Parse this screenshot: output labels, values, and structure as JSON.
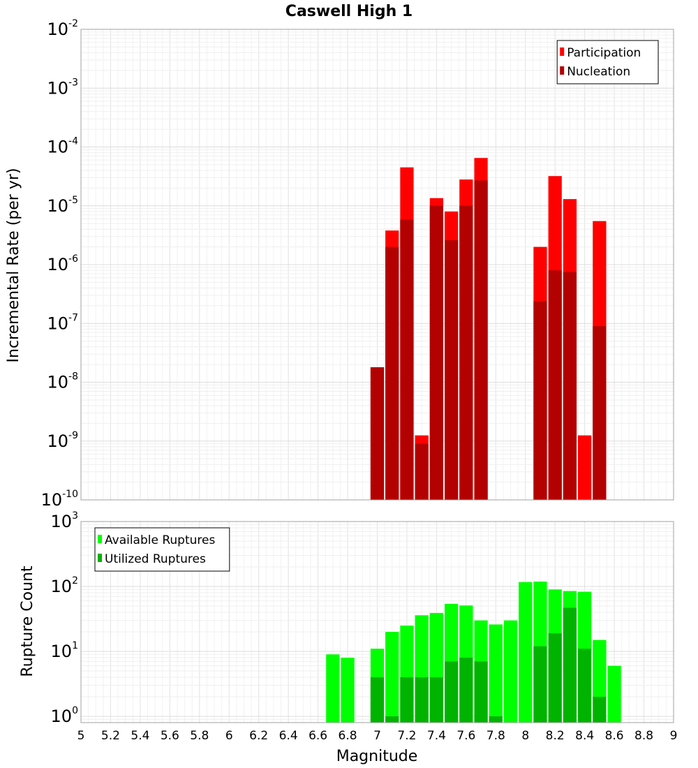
{
  "chart_data": [
    {
      "type": "bar",
      "title": "Caswell High 1",
      "xlabel": "",
      "ylabel": "Incremental Rate (per yr)",
      "yscale": "log",
      "ylim": [
        1e-10,
        0.01
      ],
      "xlim": [
        5,
        9
      ],
      "legend_position": "top-right",
      "x": [
        7.0,
        7.1,
        7.2,
        7.3,
        7.4,
        7.5,
        7.6,
        7.7,
        8.1,
        8.2,
        8.3,
        8.4,
        8.5
      ],
      "series": [
        {
          "name": "Participation",
          "color": "#ff0000",
          "values": [
            1.8e-08,
            3.8e-06,
            4.5e-05,
            1.25e-09,
            1.35e-05,
            8e-06,
            2.8e-05,
            6.5e-05,
            2e-06,
            3.2e-05,
            1.3e-05,
            1.25e-09,
            5.5e-06
          ]
        },
        {
          "name": "Nucleation",
          "color": "#b30000",
          "values": [
            1.8e-08,
            2e-06,
            5.8e-06,
            9e-10,
            1e-05,
            2.6e-06,
            1e-05,
            2.7e-05,
            2.4e-07,
            8e-07,
            7.5e-07,
            null,
            9e-08
          ]
        }
      ]
    },
    {
      "type": "bar",
      "title": "",
      "xlabel": "Magnitude",
      "ylabel": "Rupture Count",
      "yscale": "log",
      "ylim": [
        0.8,
        1000
      ],
      "xlim": [
        5,
        9
      ],
      "x_ticks": [
        "5",
        "5.2",
        "5.4",
        "5.6",
        "5.8",
        "6",
        "6.2",
        "6.4",
        "6.6",
        "6.8",
        "7",
        "7.2",
        "7.4",
        "7.6",
        "7.8",
        "8",
        "8.2",
        "8.4",
        "8.6",
        "8.8",
        "9"
      ],
      "legend_position": "top-left",
      "x": [
        6.7,
        6.8,
        7.0,
        7.1,
        7.2,
        7.3,
        7.4,
        7.5,
        7.6,
        7.7,
        7.8,
        7.9,
        8.0,
        8.1,
        8.2,
        8.3,
        8.4,
        8.5,
        8.6
      ],
      "series": [
        {
          "name": "Available Ruptures",
          "color": "#00ff00",
          "values": [
            9,
            8,
            11,
            20,
            25,
            36,
            39,
            54,
            51,
            30,
            26,
            30,
            117,
            119,
            90,
            85,
            83,
            15,
            6
          ]
        },
        {
          "name": "Utilized Ruptures",
          "color": "#00b300",
          "values": [
            null,
            null,
            4,
            1,
            4,
            4,
            4,
            7,
            8,
            7,
            1,
            null,
            null,
            12,
            19,
            47,
            11,
            2,
            null
          ]
        }
      ]
    }
  ]
}
